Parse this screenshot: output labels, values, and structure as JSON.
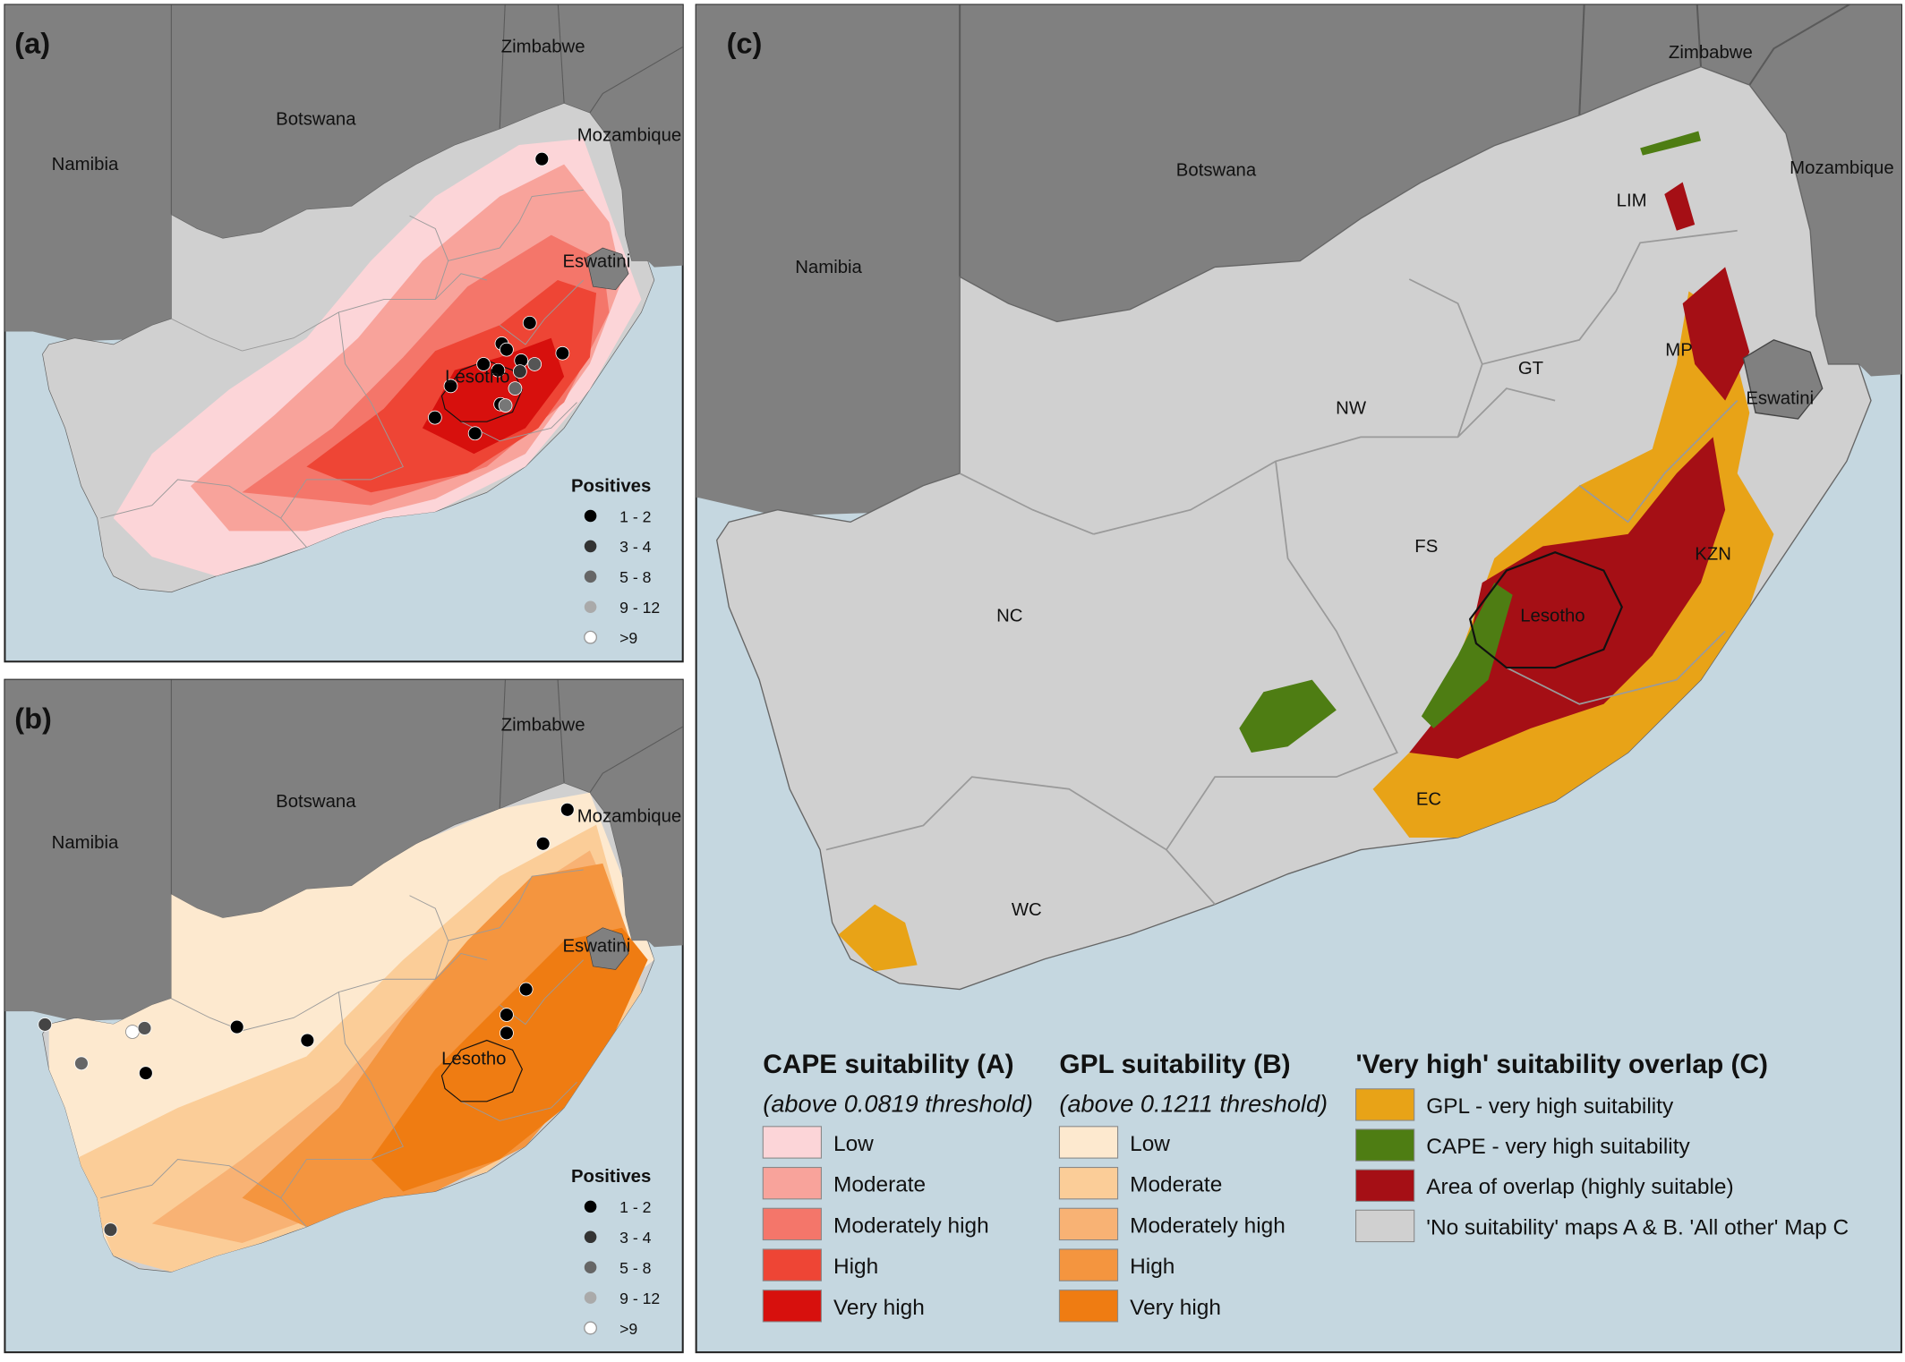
{
  "panels": [
    {
      "label": "(a)",
      "countries": [
        "Namibia",
        "Botswana",
        "Zimbabwe",
        "Mozambique",
        "Eswatini",
        "Lesotho"
      ],
      "legend": {
        "title": "Positives",
        "classes": [
          "1 - 2",
          "3 - 4",
          "5 - 8",
          "9 - 12",
          ">9"
        ]
      }
    },
    {
      "label": "(b)",
      "countries": [
        "Namibia",
        "Botswana",
        "Zimbabwe",
        "Mozambique",
        "Eswatini",
        "Lesotho"
      ],
      "legend": {
        "title": "Positives",
        "classes": [
          "1 - 2",
          "3 - 4",
          "5 - 8",
          "9 - 12",
          ">9"
        ]
      }
    },
    {
      "label": "(c)",
      "countries": [
        "Namibia",
        "Botswana",
        "Zimbabwe",
        "Mozambique",
        "Eswatini",
        "Lesotho"
      ],
      "provinces": [
        "LIM",
        "MP",
        "GT",
        "NW",
        "FS",
        "KZN",
        "NC",
        "EC",
        "WC"
      ]
    }
  ],
  "legend": {
    "cape": {
      "title": "CAPE suitability (A)",
      "subtitle": "(above 0.0819 threshold)",
      "classes": [
        {
          "label": "Low",
          "color": "#fcd5d8"
        },
        {
          "label": "Moderate",
          "color": "#f8a39b"
        },
        {
          "label": "Moderately high",
          "color": "#f4766a"
        },
        {
          "label": "High",
          "color": "#ee4535"
        },
        {
          "label": "Very high",
          "color": "#d7100d"
        }
      ]
    },
    "gpl": {
      "title": "GPL suitability (B)",
      "subtitle": "(above 0.1211 threshold)",
      "classes": [
        {
          "label": "Low",
          "color": "#fde9cf"
        },
        {
          "label": "Moderate",
          "color": "#fbcd98"
        },
        {
          "label": "Moderately high",
          "color": "#f8b274"
        },
        {
          "label": "High",
          "color": "#f4953f"
        },
        {
          "label": "Very high",
          "color": "#ef7c12"
        }
      ]
    },
    "overlap": {
      "title": "'Very high' suitability overlap (C)",
      "classes": [
        {
          "label": "GPL - very high suitability",
          "color": "#e8a317"
        },
        {
          "label": "CAPE - very high suitability",
          "color": "#4e7d13"
        },
        {
          "label": "Area of overlap (highly suitable)",
          "color": "#a50f15"
        },
        {
          "label": "'No suitability' maps A & B. 'All other' Map C",
          "color": "#d0d0d0"
        }
      ]
    }
  }
}
